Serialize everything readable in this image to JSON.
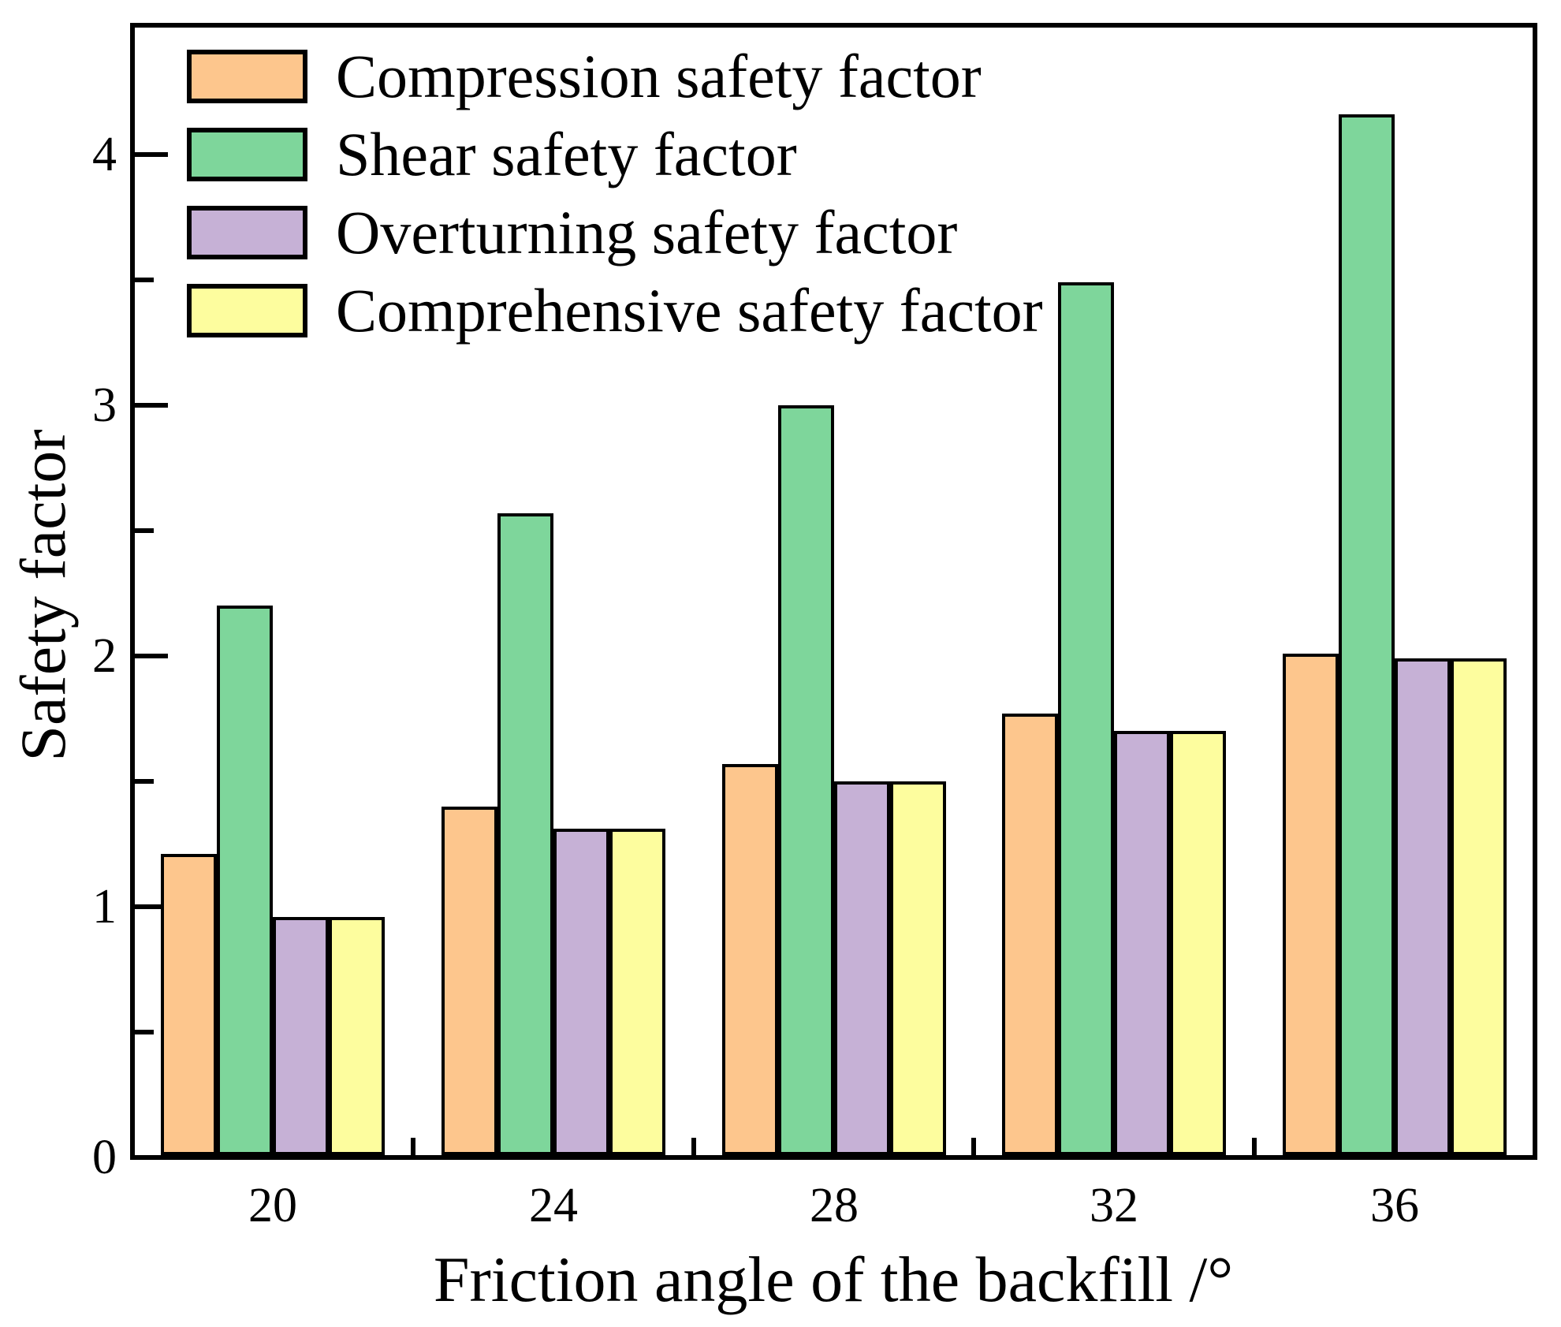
{
  "chart_data": {
    "type": "bar",
    "title": "",
    "categories": [
      "20",
      "24",
      "28",
      "32",
      "36"
    ],
    "series": [
      {
        "name": "Compression safety factor",
        "color": "#FDC68D",
        "values": [
          1.21,
          1.4,
          1.57,
          1.77,
          2.01
        ]
      },
      {
        "name": "Shear safety factor",
        "color": "#7ED69B",
        "values": [
          2.2,
          2.57,
          3.0,
          3.49,
          4.16
        ]
      },
      {
        "name": "Overturning safety factor",
        "color": "#C6B1D6",
        "values": [
          0.96,
          1.31,
          1.5,
          1.7,
          1.99
        ]
      },
      {
        "name": "Comprehensive safety factor",
        "color": "#FDFD9E",
        "values": [
          0.96,
          1.31,
          1.5,
          1.7,
          1.99
        ]
      }
    ],
    "xlabel": "Friction angle of the backfill /°",
    "ylabel": "Safety factor",
    "ylim": [
      0,
      4.5
    ],
    "y_major_ticks": [
      "0",
      "1",
      "2",
      "3",
      "4"
    ],
    "y_minor_ticks": [
      0.5,
      1.5,
      2.5,
      3.5
    ],
    "x_boundary_ticks": true,
    "grid": false,
    "legend_position": "top-left",
    "bar_edge_color": "#000000",
    "text_color": "#000000",
    "background": "#FFFFFF"
  }
}
